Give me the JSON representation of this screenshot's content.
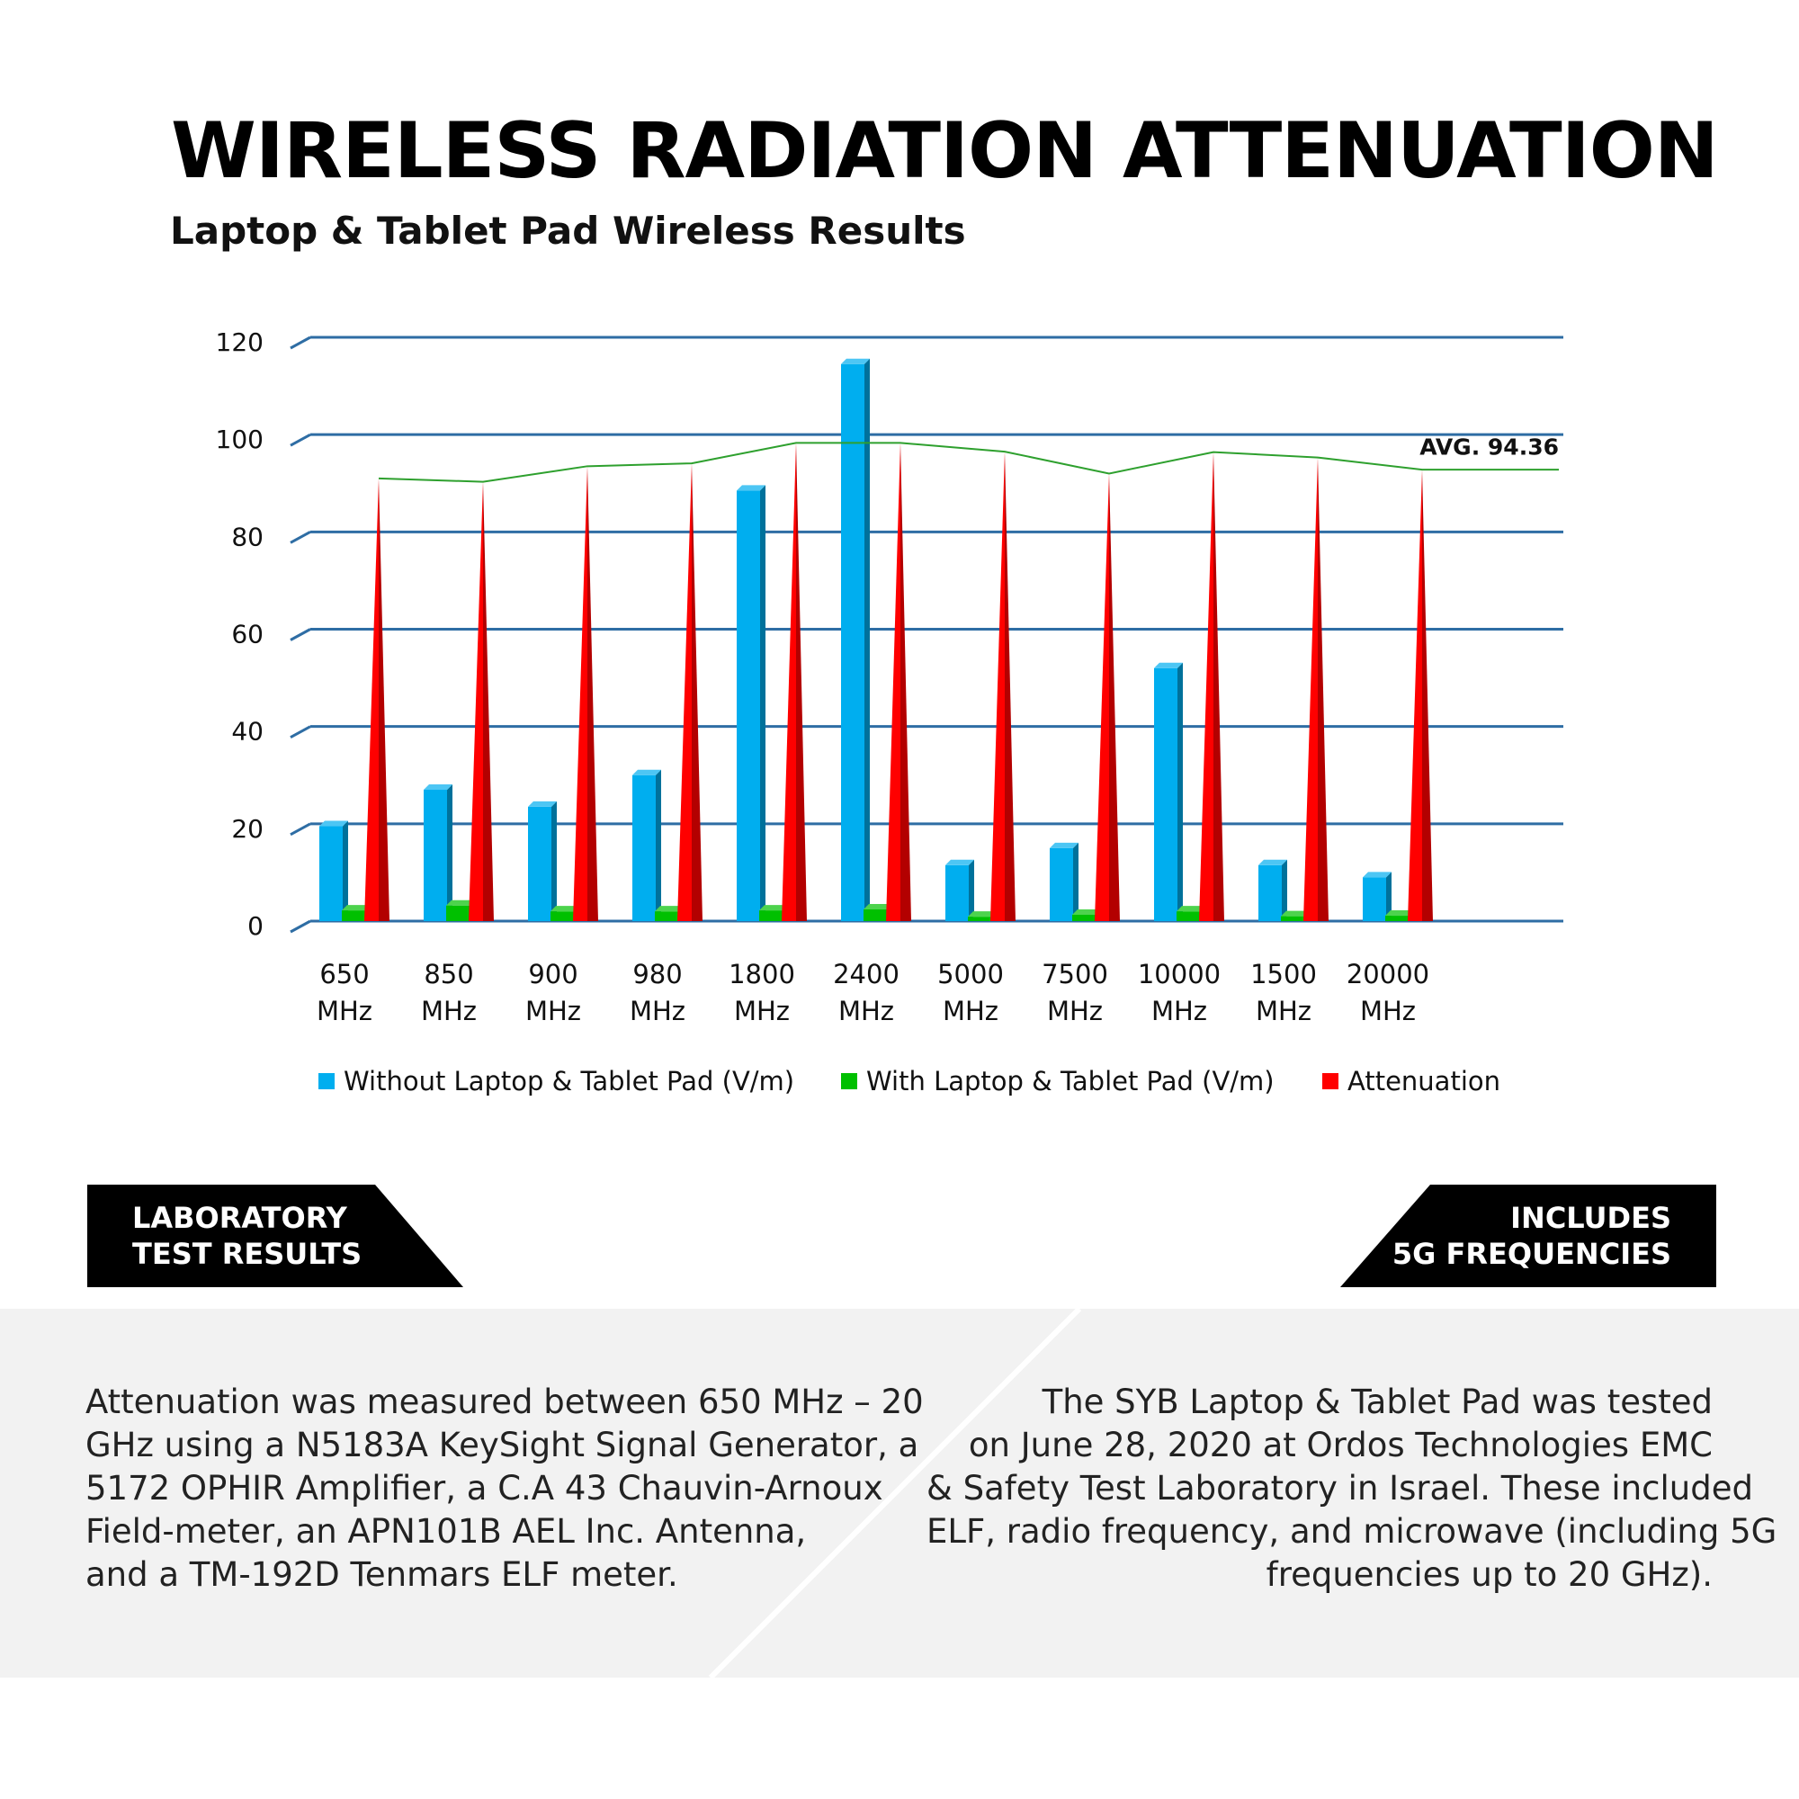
{
  "header": {
    "title": "WIRELESS RADIATION ATTENUATION",
    "subtitle": "Laptop & Tablet Pad Wireless Results"
  },
  "chart_data": {
    "type": "bar",
    "title": "WIRELESS RADIATION ATTENUATION",
    "subtitle": "Laptop & Tablet Pad Wireless Results",
    "categories": [
      [
        "650",
        "MHz"
      ],
      [
        "850",
        "MHz"
      ],
      [
        "900",
        "MHz"
      ],
      [
        "980",
        "MHz"
      ],
      [
        "1800",
        "MHz"
      ],
      [
        "2400",
        "MHz"
      ],
      [
        "5000",
        "MHz"
      ],
      [
        "7500",
        "MHz"
      ],
      [
        "10000",
        "MHz"
      ],
      [
        "1500",
        "MHz"
      ],
      [
        "20000",
        "MHz"
      ]
    ],
    "ylim": [
      0,
      120
    ],
    "yticks": [
      0,
      20,
      40,
      60,
      80,
      100,
      120
    ],
    "grid": true,
    "series": [
      {
        "name": "Without Laptop & Tablet Pad (V/m)",
        "color": "#00aeef",
        "shape": "3d-bar",
        "values": [
          19.5,
          27,
          23.5,
          30,
          88.5,
          114.5,
          11.5,
          15,
          52,
          11.5,
          9
        ]
      },
      {
        "name": "With Laptop & Tablet Pad (V/m)",
        "color": "#00c000",
        "shape": "3d-bar",
        "values": [
          2.2,
          3.2,
          2.0,
          2.0,
          2.2,
          2.4,
          0.9,
          1.3,
          2.0,
          1.0,
          1.1
        ]
      },
      {
        "name": "Attenuation",
        "color": "#ff0000",
        "shape": "cone",
        "values": [
          91,
          90.3,
          93.5,
          94.1,
          98.3,
          98.3,
          96.5,
          92,
          96.4,
          95.3,
          92.8
        ]
      }
    ],
    "average": {
      "label": "AVG. 94.36",
      "value": 94.36,
      "color": "#2ea02e"
    }
  },
  "banners": {
    "left": [
      "LABORATORY",
      "TEST RESULTS"
    ],
    "right": [
      "INCLUDES",
      "5G FREQUENCIES"
    ]
  },
  "paragraphs": {
    "left": [
      "Attenuation was measured between 650 MHz – 20",
      "GHz using a N5183A KeySight Signal Generator, a",
      "5172 OPHIR Amplifier, a C.A 43 Chauvin-Arnoux",
      "Field-meter, an APN101B AEL Inc. Antenna,",
      "and a TM-192D Tenmars ELF meter."
    ],
    "right": [
      "The SYB Laptop & Tablet Pad was tested",
      "on June 28, 2020 at Ordos Technologies EMC",
      "& Safety Test Laboratory in Israel. These included",
      "ELF, radio frequency, and microwave (including 5G",
      "frequencies up to 20 GHz)."
    ]
  }
}
